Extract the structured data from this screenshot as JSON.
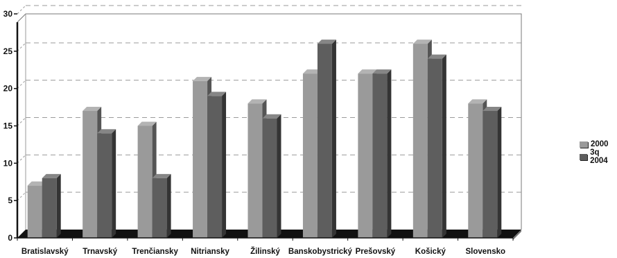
{
  "chart_data": {
    "type": "bar",
    "categories": [
      "Bratislavský",
      "Trnavský",
      "Trenčiansky",
      "Nitriansky",
      "Žilinský",
      "Banskobystrický",
      "Prešovský",
      "Košický",
      "Slovensko"
    ],
    "series": [
      {
        "name": "2000",
        "values": [
          7,
          17,
          15,
          21,
          18,
          22,
          22,
          26,
          18
        ],
        "color": "#9a9a9a"
      },
      {
        "name": "3q 2004",
        "values": [
          8,
          14,
          8,
          19,
          16,
          26,
          22,
          24,
          17
        ],
        "color": "#5e5e5e"
      }
    ],
    "yticks": [
      "0",
      "5",
      "10",
      "15",
      "20",
      "25",
      "30"
    ],
    "ylim": [
      0,
      30
    ],
    "grid": true,
    "legend_position": "right",
    "three_d": true
  }
}
